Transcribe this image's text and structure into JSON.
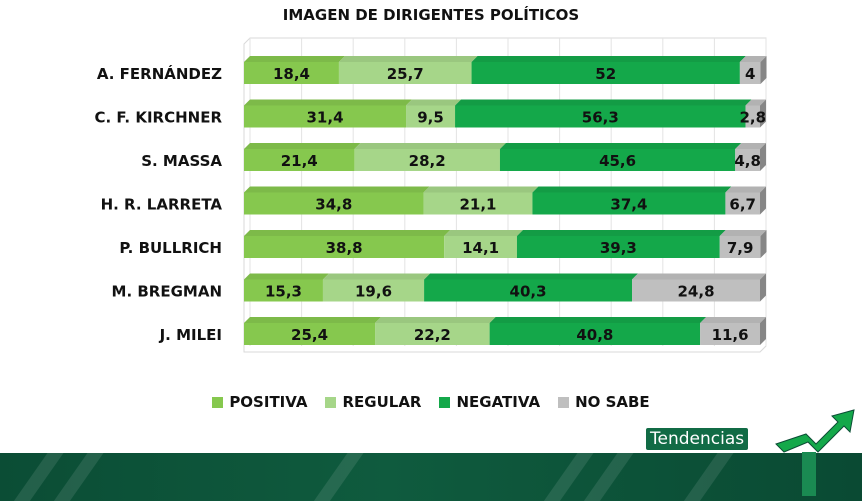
{
  "brand": {
    "name": "Tendencias"
  },
  "colors": {
    "positiva": "#86c84e",
    "regular": "#a6d689",
    "negativa": "#14a84a",
    "no_sabe": "#bfbfbf",
    "brand_green": "#0f5b3e"
  },
  "chart_data": {
    "type": "bar",
    "orientation": "horizontal",
    "stacked": true,
    "title": "IMAGEN DE DIRIGENTES POLÍTICOS",
    "categories": [
      "A. FERNÁNDEZ",
      "C. F. KIRCHNER",
      "S. MASSA",
      "H. R. LARRETA",
      "P. BULLRICH",
      "M. BREGMAN",
      "J. MILEI"
    ],
    "series": [
      {
        "name": "POSITIVA",
        "color": "#86c84e",
        "labels": [
          "18,4",
          "31,4",
          "21,4",
          "34,8",
          "38,8",
          "15,3",
          "25,4"
        ],
        "values": [
          18.4,
          31.4,
          21.4,
          34.8,
          38.8,
          15.3,
          25.4
        ]
      },
      {
        "name": "REGULAR",
        "color": "#a6d689",
        "labels": [
          "25,7",
          "9,5",
          "28,2",
          "21,1",
          "14,1",
          "19,6",
          "22,2"
        ],
        "values": [
          25.7,
          9.5,
          28.2,
          21.1,
          14.1,
          19.6,
          22.2
        ]
      },
      {
        "name": "NEGATIVA",
        "color": "#14a84a",
        "labels": [
          "52",
          "56,3",
          "45,6",
          "37,4",
          "39,3",
          "40,3",
          "40,8"
        ],
        "values": [
          52,
          56.3,
          45.6,
          37.4,
          39.3,
          40.3,
          40.8
        ]
      },
      {
        "name": "NO SABE",
        "color": "#bfbfbf",
        "labels": [
          "4",
          "2,8",
          "4,8",
          "6,7",
          "7,9",
          "24,8",
          "11,6"
        ],
        "values": [
          4,
          2.8,
          4.8,
          6.7,
          7.9,
          24.8,
          11.6
        ]
      }
    ],
    "xlim": [
      0,
      100
    ],
    "grid": true,
    "legend_position": "bottom"
  }
}
